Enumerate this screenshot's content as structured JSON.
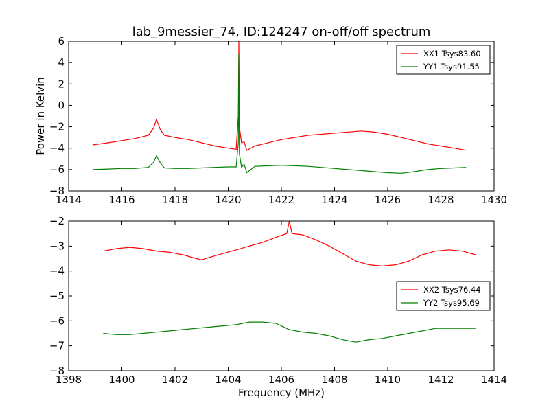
{
  "chart_data": [
    {
      "type": "line",
      "title": "lab_9messier_74, ID:124247 on-off/off spectrum",
      "xlabel": "",
      "ylabel": "Power in Kelvin",
      "xlim": [
        1414,
        1430
      ],
      "ylim": [
        -8,
        6
      ],
      "xticks": [
        1414,
        1416,
        1418,
        1420,
        1422,
        1424,
        1426,
        1428,
        1430
      ],
      "yticks": [
        -8,
        -6,
        -4,
        -2,
        0,
        2,
        4,
        6
      ],
      "legend_position": "top-right",
      "grid": false,
      "series": [
        {
          "name": "XX1 Tsys83.60",
          "color": "#ff0000",
          "x": [
            1414.9,
            1415.5,
            1416.0,
            1416.5,
            1417.0,
            1417.2,
            1417.3,
            1417.45,
            1417.6,
            1418.0,
            1418.5,
            1419.0,
            1419.5,
            1420.0,
            1420.3,
            1420.38,
            1420.4,
            1420.42,
            1420.5,
            1420.6,
            1420.7,
            1421.0,
            1421.5,
            1422.0,
            1422.5,
            1423.0,
            1423.5,
            1424.0,
            1424.5,
            1425.0,
            1425.5,
            1426.0,
            1426.5,
            1427.0,
            1427.5,
            1428.0,
            1428.5,
            1428.95
          ],
          "y": [
            -3.7,
            -3.5,
            -3.3,
            -3.1,
            -2.8,
            -2.1,
            -1.3,
            -2.3,
            -2.8,
            -3.0,
            -3.2,
            -3.5,
            -3.8,
            -4.0,
            -4.1,
            -1.0,
            6.0,
            -2.0,
            -3.5,
            -3.4,
            -4.2,
            -3.8,
            -3.5,
            -3.2,
            -3.0,
            -2.8,
            -2.7,
            -2.6,
            -2.5,
            -2.4,
            -2.5,
            -2.7,
            -3.0,
            -3.3,
            -3.6,
            -3.8,
            -4.0,
            -4.2
          ]
        },
        {
          "name": "YY1 Tsys91.55",
          "color": "#008000",
          "x": [
            1414.9,
            1415.5,
            1416.0,
            1416.5,
            1417.0,
            1417.2,
            1417.3,
            1417.45,
            1417.6,
            1418.0,
            1418.5,
            1419.0,
            1419.5,
            1420.0,
            1420.3,
            1420.38,
            1420.4,
            1420.42,
            1420.5,
            1420.6,
            1420.7,
            1421.0,
            1421.5,
            1422.0,
            1422.5,
            1423.0,
            1423.5,
            1424.0,
            1424.5,
            1425.0,
            1425.5,
            1426.0,
            1426.5,
            1427.0,
            1427.5,
            1428.0,
            1428.5,
            1428.95
          ],
          "y": [
            -6.0,
            -5.95,
            -5.9,
            -5.9,
            -5.8,
            -5.3,
            -4.7,
            -5.4,
            -5.85,
            -5.9,
            -5.9,
            -5.85,
            -5.8,
            -5.75,
            -5.75,
            -3.5,
            4.8,
            -4.5,
            -5.8,
            -5.5,
            -6.3,
            -5.7,
            -5.65,
            -5.6,
            -5.65,
            -5.7,
            -5.8,
            -5.9,
            -6.0,
            -6.1,
            -6.2,
            -6.3,
            -6.35,
            -6.2,
            -6.0,
            -5.9,
            -5.85,
            -5.8
          ]
        }
      ]
    },
    {
      "type": "line",
      "title": "",
      "xlabel": "Frequency (MHz)",
      "ylabel": "",
      "xlim": [
        1398,
        1414
      ],
      "ylim": [
        -8,
        -2
      ],
      "xticks": [
        1398,
        1400,
        1402,
        1404,
        1406,
        1408,
        1410,
        1412,
        1414
      ],
      "yticks": [
        -8,
        -7,
        -6,
        -5,
        -4,
        -3,
        -2
      ],
      "legend_position": "center-right",
      "grid": false,
      "series": [
        {
          "name": "XX2 Tsys76.44",
          "color": "#ff0000",
          "x": [
            1399.3,
            1399.8,
            1400.3,
            1400.8,
            1401.3,
            1401.8,
            1402.3,
            1402.8,
            1403.0,
            1403.3,
            1403.8,
            1404.3,
            1404.8,
            1405.3,
            1405.8,
            1406.2,
            1406.3,
            1406.4,
            1406.8,
            1407.3,
            1407.8,
            1408.3,
            1408.8,
            1409.3,
            1409.8,
            1410.3,
            1410.8,
            1411.3,
            1411.8,
            1412.3,
            1412.8,
            1413.3
          ],
          "y": [
            -3.2,
            -3.1,
            -3.05,
            -3.1,
            -3.2,
            -3.25,
            -3.35,
            -3.5,
            -3.55,
            -3.45,
            -3.3,
            -3.15,
            -3.0,
            -2.85,
            -2.65,
            -2.5,
            -2.0,
            -2.5,
            -2.55,
            -2.75,
            -3.0,
            -3.3,
            -3.6,
            -3.75,
            -3.8,
            -3.75,
            -3.6,
            -3.35,
            -3.2,
            -3.15,
            -3.2,
            -3.35
          ]
        },
        {
          "name": "YY2 Tsys95.69",
          "color": "#008000",
          "x": [
            1399.3,
            1399.8,
            1400.3,
            1400.8,
            1401.3,
            1401.8,
            1402.3,
            1402.8,
            1403.3,
            1403.8,
            1404.3,
            1404.8,
            1405.3,
            1405.8,
            1406.3,
            1406.8,
            1407.3,
            1407.8,
            1408.3,
            1408.8,
            1409.3,
            1409.8,
            1410.3,
            1410.8,
            1411.3,
            1411.8,
            1412.3,
            1412.8,
            1413.3
          ],
          "y": [
            -6.5,
            -6.55,
            -6.55,
            -6.5,
            -6.45,
            -6.4,
            -6.35,
            -6.3,
            -6.25,
            -6.2,
            -6.15,
            -6.05,
            -6.05,
            -6.1,
            -6.35,
            -6.45,
            -6.5,
            -6.6,
            -6.75,
            -6.85,
            -6.75,
            -6.7,
            -6.6,
            -6.5,
            -6.4,
            -6.3,
            -6.3,
            -6.3,
            -6.3
          ]
        }
      ]
    }
  ]
}
